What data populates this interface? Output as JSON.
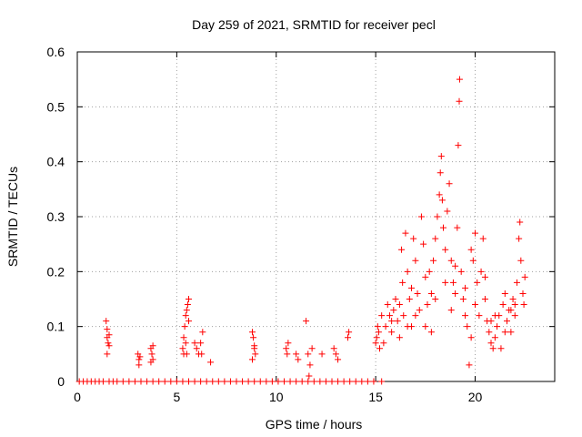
{
  "chart_data": {
    "type": "scatter",
    "title": "Day 259 of 2021, SRMTID for receiver pecl",
    "xlabel": "GPS time / hours",
    "ylabel": "SRMTID / TECUs",
    "xlim": [
      0,
      24
    ],
    "ylim": [
      0,
      0.6
    ],
    "xticks": [
      0,
      5,
      10,
      15,
      20
    ],
    "xtick_labels": [
      "0",
      "5",
      "10",
      "15",
      "20"
    ],
    "yticks": [
      0,
      0.1,
      0.2,
      0.3,
      0.4,
      0.5,
      0.6
    ],
    "ytick_labels": [
      "0",
      "0.1",
      "0.2",
      "0.3",
      "0.4",
      "0.5",
      "0.6"
    ],
    "grid": true,
    "marker": "+",
    "series": [
      {
        "name": "SRMTID",
        "color": "#ff0000",
        "points": [
          [
            0.1,
            0
          ],
          [
            0.3,
            0
          ],
          [
            0.5,
            0
          ],
          [
            0.7,
            0
          ],
          [
            0.9,
            0
          ],
          [
            1.1,
            0
          ],
          [
            1.3,
            0
          ],
          [
            1.6,
            0
          ],
          [
            1.8,
            0
          ],
          [
            2.0,
            0
          ],
          [
            2.3,
            0
          ],
          [
            2.6,
            0
          ],
          [
            2.9,
            0
          ],
          [
            3.2,
            0
          ],
          [
            3.5,
            0
          ],
          [
            3.8,
            0
          ],
          [
            4.1,
            0
          ],
          [
            4.4,
            0
          ],
          [
            4.7,
            0
          ],
          [
            5.0,
            0
          ],
          [
            5.3,
            0
          ],
          [
            5.6,
            0
          ],
          [
            5.9,
            0
          ],
          [
            6.2,
            0
          ],
          [
            6.5,
            0
          ],
          [
            6.8,
            0
          ],
          [
            7.1,
            0
          ],
          [
            7.4,
            0
          ],
          [
            7.7,
            0
          ],
          [
            8.0,
            0
          ],
          [
            8.3,
            0
          ],
          [
            8.6,
            0
          ],
          [
            8.9,
            0
          ],
          [
            9.2,
            0
          ],
          [
            9.5,
            0
          ],
          [
            9.8,
            0
          ],
          [
            10.1,
            0
          ],
          [
            10.4,
            0
          ],
          [
            10.7,
            0
          ],
          [
            11.0,
            0
          ],
          [
            11.3,
            0
          ],
          [
            11.6,
            0
          ],
          [
            11.9,
            0
          ],
          [
            12.2,
            0
          ],
          [
            12.5,
            0
          ],
          [
            12.8,
            0
          ],
          [
            13.1,
            0
          ],
          [
            13.4,
            0
          ],
          [
            13.7,
            0
          ],
          [
            14.0,
            0
          ],
          [
            14.3,
            0
          ],
          [
            14.6,
            0
          ],
          [
            14.9,
            0
          ],
          [
            15.3,
            0
          ],
          [
            1.45,
            0.11
          ],
          [
            1.5,
            0.095
          ],
          [
            1.5,
            0.08
          ],
          [
            1.55,
            0.07
          ],
          [
            1.6,
            0.065
          ],
          [
            1.5,
            0.05
          ],
          [
            1.6,
            0.085
          ],
          [
            3.05,
            0.05
          ],
          [
            3.1,
            0.04
          ],
          [
            3.1,
            0.03
          ],
          [
            3.15,
            0.045
          ],
          [
            3.7,
            0.06
          ],
          [
            3.75,
            0.05
          ],
          [
            3.8,
            0.04
          ],
          [
            3.7,
            0.035
          ],
          [
            3.8,
            0.065
          ],
          [
            5.3,
            0.06
          ],
          [
            5.35,
            0.08
          ],
          [
            5.4,
            0.1
          ],
          [
            5.45,
            0.12
          ],
          [
            5.5,
            0.13
          ],
          [
            5.55,
            0.14
          ],
          [
            5.6,
            0.15
          ],
          [
            5.45,
            0.07
          ],
          [
            5.5,
            0.05
          ],
          [
            5.6,
            0.11
          ],
          [
            5.35,
            0.05
          ],
          [
            5.9,
            0.07
          ],
          [
            6.0,
            0.06
          ],
          [
            6.1,
            0.05
          ],
          [
            6.2,
            0.07
          ],
          [
            6.3,
            0.09
          ],
          [
            6.25,
            0.05
          ],
          [
            6.7,
            0.035
          ],
          [
            8.8,
            0.09
          ],
          [
            8.85,
            0.08
          ],
          [
            8.9,
            0.06
          ],
          [
            8.95,
            0.05
          ],
          [
            8.8,
            0.04
          ],
          [
            8.9,
            0.065
          ],
          [
            10.5,
            0.06
          ],
          [
            10.55,
            0.05
          ],
          [
            10.6,
            0.07
          ],
          [
            11.0,
            0.05
          ],
          [
            11.1,
            0.04
          ],
          [
            11.5,
            0.11
          ],
          [
            11.6,
            0.05
          ],
          [
            11.7,
            0.03
          ],
          [
            11.8,
            0.06
          ],
          [
            11.65,
            0.01
          ],
          [
            12.3,
            0.05
          ],
          [
            12.9,
            0.06
          ],
          [
            13.0,
            0.05
          ],
          [
            13.1,
            0.04
          ],
          [
            13.6,
            0.08
          ],
          [
            13.65,
            0.09
          ],
          [
            15.0,
            0.07
          ],
          [
            15.05,
            0.08
          ],
          [
            15.1,
            0.1
          ],
          [
            15.15,
            0.09
          ],
          [
            15.2,
            0.06
          ],
          [
            15.3,
            0.12
          ],
          [
            15.4,
            0.07
          ],
          [
            15.5,
            0.1
          ],
          [
            15.6,
            0.14
          ],
          [
            15.7,
            0.12
          ],
          [
            15.8,
            0.09
          ],
          [
            15.9,
            0.13
          ],
          [
            16.0,
            0.15
          ],
          [
            16.1,
            0.11
          ],
          [
            16.2,
            0.08
          ],
          [
            16.3,
            0.24
          ],
          [
            16.35,
            0.18
          ],
          [
            16.4,
            0.12
          ],
          [
            16.5,
            0.27
          ],
          [
            16.6,
            0.2
          ],
          [
            16.7,
            0.15
          ],
          [
            16.8,
            0.1
          ],
          [
            16.9,
            0.26
          ],
          [
            17.0,
            0.22
          ],
          [
            17.1,
            0.16
          ],
          [
            17.2,
            0.13
          ],
          [
            17.3,
            0.3
          ],
          [
            17.4,
            0.25
          ],
          [
            17.5,
            0.19
          ],
          [
            17.6,
            0.14
          ],
          [
            17.7,
            0.2
          ],
          [
            17.8,
            0.09
          ],
          [
            17.9,
            0.22
          ],
          [
            18.0,
            0.26
          ],
          [
            18.1,
            0.3
          ],
          [
            18.2,
            0.34
          ],
          [
            18.25,
            0.38
          ],
          [
            18.3,
            0.41
          ],
          [
            18.35,
            0.33
          ],
          [
            18.4,
            0.28
          ],
          [
            18.5,
            0.24
          ],
          [
            18.6,
            0.31
          ],
          [
            18.7,
            0.36
          ],
          [
            18.8,
            0.22
          ],
          [
            18.9,
            0.18
          ],
          [
            19.0,
            0.16
          ],
          [
            19.1,
            0.28
          ],
          [
            19.15,
            0.43
          ],
          [
            19.2,
            0.51
          ],
          [
            19.22,
            0.55
          ],
          [
            19.3,
            0.2
          ],
          [
            19.4,
            0.15
          ],
          [
            19.5,
            0.12
          ],
          [
            19.6,
            0.1
          ],
          [
            19.7,
            0.03
          ],
          [
            19.8,
            0.08
          ],
          [
            19.9,
            0.22
          ],
          [
            20.0,
            0.27
          ],
          [
            20.1,
            0.18
          ],
          [
            20.2,
            0.12
          ],
          [
            20.3,
            0.2
          ],
          [
            20.4,
            0.26
          ],
          [
            20.5,
            0.15
          ],
          [
            20.6,
            0.11
          ],
          [
            20.7,
            0.09
          ],
          [
            20.8,
            0.07
          ],
          [
            20.9,
            0.06
          ],
          [
            21.0,
            0.08
          ],
          [
            21.1,
            0.1
          ],
          [
            21.2,
            0.12
          ],
          [
            21.3,
            0.06
          ],
          [
            21.4,
            0.14
          ],
          [
            21.5,
            0.16
          ],
          [
            21.6,
            0.11
          ],
          [
            21.7,
            0.13
          ],
          [
            21.8,
            0.09
          ],
          [
            21.9,
            0.15
          ],
          [
            22.0,
            0.12
          ],
          [
            22.1,
            0.18
          ],
          [
            22.2,
            0.26
          ],
          [
            22.25,
            0.29
          ],
          [
            22.3,
            0.22
          ],
          [
            22.4,
            0.16
          ],
          [
            22.5,
            0.19
          ],
          [
            22.45,
            0.14
          ],
          [
            16.2,
            0.14
          ],
          [
            16.6,
            0.1
          ],
          [
            17.0,
            0.12
          ],
          [
            17.5,
            0.1
          ],
          [
            18.0,
            0.15
          ],
          [
            18.5,
            0.18
          ],
          [
            19.0,
            0.21
          ],
          [
            19.5,
            0.17
          ],
          [
            20.0,
            0.14
          ],
          [
            20.5,
            0.19
          ],
          [
            21.0,
            0.12
          ],
          [
            21.5,
            0.09
          ],
          [
            22.0,
            0.14
          ],
          [
            15.8,
            0.11
          ],
          [
            16.8,
            0.17
          ],
          [
            17.8,
            0.16
          ],
          [
            18.8,
            0.13
          ],
          [
            19.8,
            0.24
          ],
          [
            20.8,
            0.11
          ],
          [
            21.8,
            0.13
          ]
        ]
      }
    ]
  }
}
